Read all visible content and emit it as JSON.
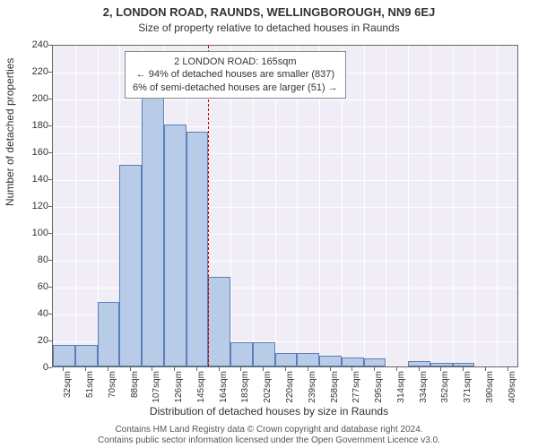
{
  "title_main": "2, LONDON ROAD, RAUNDS, WELLINGBOROUGH, NN9 6EJ",
  "title_sub": "Size of property relative to detached houses in Raunds",
  "ylabel": "Number of detached properties",
  "xlabel": "Distribution of detached houses by size in Raunds",
  "footer_line1": "Contains HM Land Registry data © Crown copyright and database right 2024.",
  "footer_line2": "Contains public sector information licensed under the Open Government Licence v3.0.",
  "chart": {
    "type": "bar",
    "plot_bg": "#f1edf7",
    "grid_color": "#ffffff",
    "border_color": "#666666",
    "bar_fill": "#b8cce8",
    "bar_border": "#5a7fb8",
    "ref_color": "#cc0000",
    "ylim": [
      0,
      240
    ],
    "ytick_step": 20,
    "xticks": [
      "32sqm",
      "51sqm",
      "70sqm",
      "88sqm",
      "107sqm",
      "126sqm",
      "145sqm",
      "164sqm",
      "183sqm",
      "202sqm",
      "220sqm",
      "239sqm",
      "258sqm",
      "277sqm",
      "295sqm",
      "314sqm",
      "334sqm",
      "352sqm",
      "371sqm",
      "390sqm",
      "409sqm"
    ],
    "values": [
      16,
      16,
      48,
      150,
      200,
      180,
      175,
      67,
      18,
      18,
      10,
      10,
      8,
      7,
      6,
      0,
      4,
      3,
      3,
      0,
      0
    ],
    "ref_index_after": 7,
    "callout": {
      "line1": "2 LONDON ROAD: 165sqm",
      "line2": "← 94% of detached houses are smaller (837)",
      "line3": "6% of semi-detached houses are larger (51) →"
    }
  }
}
